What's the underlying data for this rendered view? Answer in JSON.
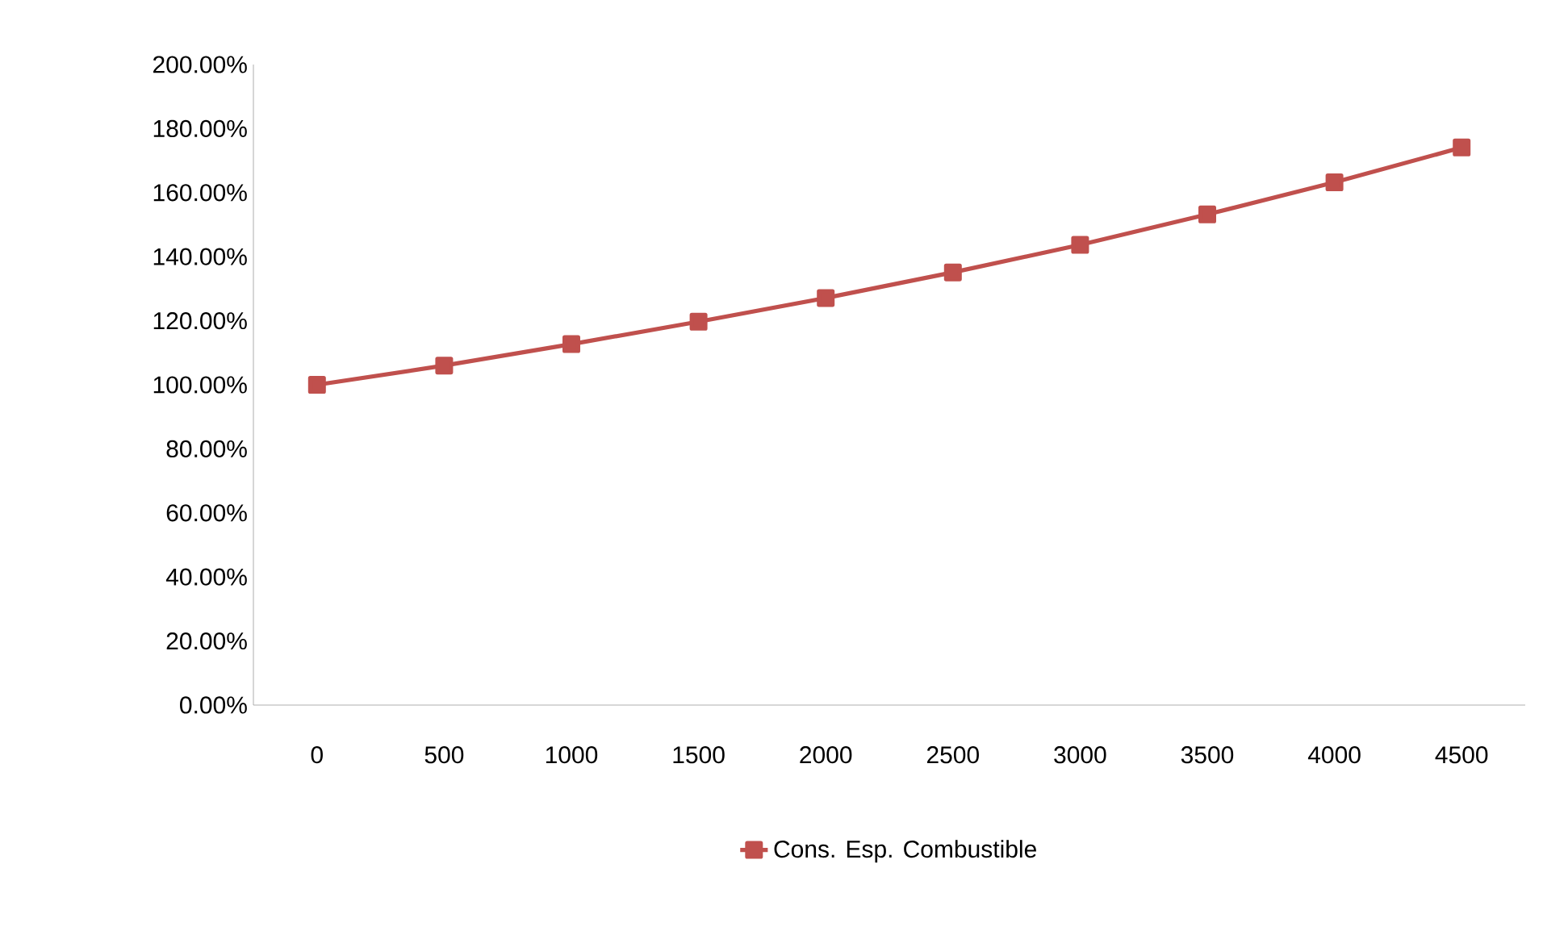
{
  "chart_data": {
    "type": "line",
    "categories": [
      "0",
      "500",
      "1000",
      "1500",
      "2000",
      "2500",
      "3000",
      "3500",
      "4000",
      "4500"
    ],
    "series": [
      {
        "name": "Cons. Esp. Combustible",
        "color": "#c0504d",
        "values": [
          100,
          106,
          112.7,
          119.7,
          127.1,
          135.1,
          143.7,
          153.2,
          163.2,
          174.1
        ]
      }
    ],
    "ylim": [
      0,
      200
    ],
    "yticks": [
      {
        "value": 0,
        "label": "0.00%"
      },
      {
        "value": 20,
        "label": "20.00%"
      },
      {
        "value": 40,
        "label": "40.00%"
      },
      {
        "value": 60,
        "label": "60.00%"
      },
      {
        "value": 80,
        "label": "80.00%"
      },
      {
        "value": 100,
        "label": "100.00%"
      },
      {
        "value": 120,
        "label": "120.00%"
      },
      {
        "value": 140,
        "label": "140.00%"
      },
      {
        "value": 160,
        "label": "160.00%"
      },
      {
        "value": 180,
        "label": "180.00%"
      },
      {
        "value": 200,
        "label": "200.00%"
      }
    ],
    "grid": false,
    "legend": "bottom",
    "marker": "square",
    "line_style": "solid"
  }
}
